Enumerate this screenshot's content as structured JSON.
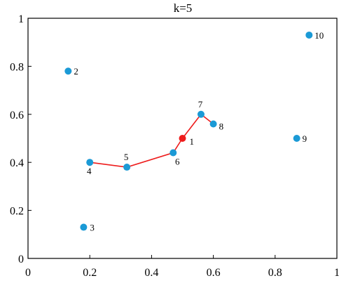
{
  "chart_data": {
    "type": "scatter",
    "title": "k=5",
    "xlabel": "",
    "ylabel": "",
    "xlim": [
      0,
      1
    ],
    "ylim": [
      0,
      1
    ],
    "x_ticks": [
      "0",
      "0.2",
      "0.4",
      "0.6",
      "0.8",
      "1"
    ],
    "y_ticks": [
      "0",
      "0.2",
      "0.4",
      "0.6",
      "0.8",
      "1"
    ],
    "grid": false,
    "points": [
      {
        "label": "1",
        "x": 0.5,
        "y": 0.5,
        "color": "#ee1c1c"
      },
      {
        "label": "2",
        "x": 0.13,
        "y": 0.78,
        "color": "#1b9ad6"
      },
      {
        "label": "3",
        "x": 0.18,
        "y": 0.13,
        "color": "#1b9ad6"
      },
      {
        "label": "4",
        "x": 0.2,
        "y": 0.4,
        "color": "#1b9ad6"
      },
      {
        "label": "5",
        "x": 0.32,
        "y": 0.38,
        "color": "#1b9ad6"
      },
      {
        "label": "6",
        "x": 0.47,
        "y": 0.44,
        "color": "#1b9ad6"
      },
      {
        "label": "7",
        "x": 0.56,
        "y": 0.6,
        "color": "#1b9ad6"
      },
      {
        "label": "8",
        "x": 0.6,
        "y": 0.56,
        "color": "#1b9ad6"
      },
      {
        "label": "9",
        "x": 0.87,
        "y": 0.5,
        "color": "#1b9ad6"
      },
      {
        "label": "10",
        "x": 0.91,
        "y": 0.93,
        "color": "#1b9ad6"
      }
    ],
    "path_labels": [
      "4",
      "5",
      "6",
      "1",
      "7",
      "8"
    ],
    "path_color": "#ee1c1c"
  }
}
